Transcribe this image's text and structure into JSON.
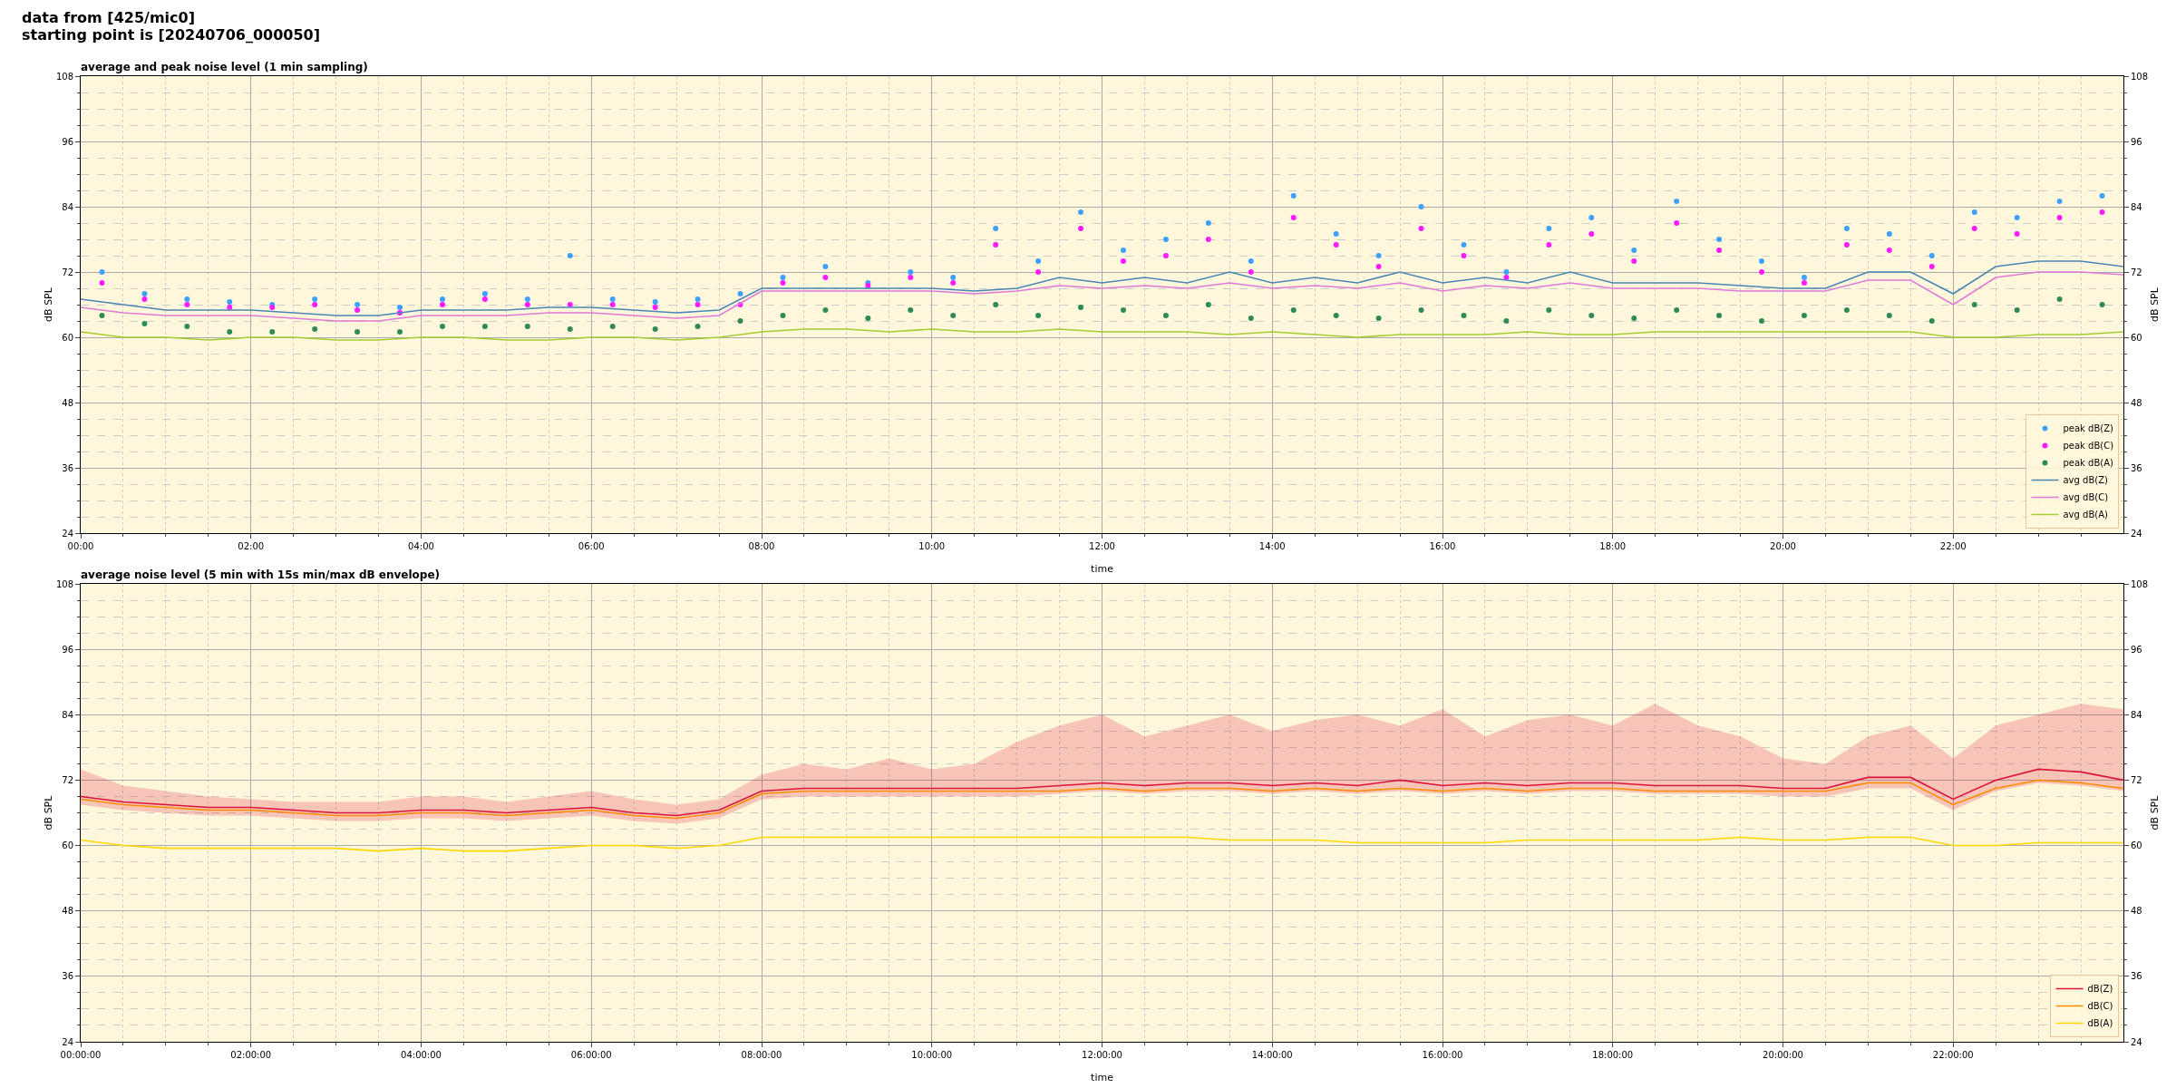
{
  "chart_data": [
    {
      "type": "line",
      "title": "data from [425/mic0]\nstarting point is [20240706_000050]",
      "subtitle": "average and peak noise level (1 min sampling)",
      "xlabel": "time",
      "ylabel": "dB SPL",
      "y2label": "dB SPL",
      "x": [
        0,
        0.5,
        1,
        1.5,
        2,
        2.5,
        3,
        3.5,
        4,
        4.5,
        5,
        5.5,
        6,
        6.5,
        7,
        7.5,
        8,
        8.5,
        9,
        9.5,
        10,
        10.5,
        11,
        11.5,
        12,
        12.5,
        13,
        13.5,
        14,
        14.5,
        15,
        15.5,
        16,
        16.5,
        17,
        17.5,
        18,
        18.5,
        19,
        19.5,
        20,
        20.5,
        21,
        21.5,
        22,
        22.5,
        23,
        23.5,
        24
      ],
      "xlim": [
        0,
        24
      ],
      "xticks": [
        {
          "value": 0,
          "label": "00:00"
        },
        {
          "value": 0.5,
          "label": null
        },
        {
          "value": 1,
          "label": null
        },
        {
          "value": 1.5,
          "label": null
        },
        {
          "value": 2,
          "label": "02:00"
        },
        {
          "value": 2.5,
          "label": null
        },
        {
          "value": 3,
          "label": null
        },
        {
          "value": 3.5,
          "label": null
        },
        {
          "value": 4,
          "label": "04:00"
        },
        {
          "value": 4.5,
          "label": null
        },
        {
          "value": 5,
          "label": null
        },
        {
          "value": 5.5,
          "label": null
        },
        {
          "value": 6,
          "label": "06:00"
        },
        {
          "value": 6.5,
          "label": null
        },
        {
          "value": 7,
          "label": null
        },
        {
          "value": 7.5,
          "label": null
        },
        {
          "value": 8,
          "label": "08:00"
        },
        {
          "value": 8.5,
          "label": null
        },
        {
          "value": 9,
          "label": null
        },
        {
          "value": 9.5,
          "label": null
        },
        {
          "value": 10,
          "label": "10:00"
        },
        {
          "value": 10.5,
          "label": null
        },
        {
          "value": 11,
          "label": null
        },
        {
          "value": 11.5,
          "label": null
        },
        {
          "value": 12,
          "label": "12:00"
        },
        {
          "value": 12.5,
          "label": null
        },
        {
          "value": 13,
          "label": null
        },
        {
          "value": 13.5,
          "label": null
        },
        {
          "value": 14,
          "label": "14:00"
        },
        {
          "value": 14.5,
          "label": null
        },
        {
          "value": 15,
          "label": null
        },
        {
          "value": 15.5,
          "label": null
        },
        {
          "value": 16,
          "label": "16:00"
        },
        {
          "value": 16.5,
          "label": null
        },
        {
          "value": 17,
          "label": null
        },
        {
          "value": 17.5,
          "label": null
        },
        {
          "value": 18,
          "label": "18:00"
        },
        {
          "value": 18.5,
          "label": null
        },
        {
          "value": 19,
          "label": null
        },
        {
          "value": 19.5,
          "label": null
        },
        {
          "value": 20,
          "label": "20:00"
        },
        {
          "value": 20.5,
          "label": null
        },
        {
          "value": 21,
          "label": null
        },
        {
          "value": 21.5,
          "label": null
        },
        {
          "value": 22,
          "label": "22:00"
        },
        {
          "value": 22.5,
          "label": null
        },
        {
          "value": 23,
          "label": null
        },
        {
          "value": 23.5,
          "label": null
        }
      ],
      "ylim": [
        24,
        108
      ],
      "yticks": [
        24,
        {
          "value": 27,
          "label": null
        },
        {
          "value": 30,
          "label": null
        },
        {
          "value": 33,
          "label": null
        },
        36,
        {
          "value": 39,
          "label": null
        },
        {
          "value": 42,
          "label": null
        },
        {
          "value": 45,
          "label": null
        },
        48,
        {
          "value": 51,
          "label": null
        },
        {
          "value": 54,
          "label": null
        },
        {
          "value": 57,
          "label": null
        },
        60,
        {
          "value": 63,
          "label": null
        },
        {
          "value": 66,
          "label": null
        },
        {
          "value": 69,
          "label": null
        },
        72,
        {
          "value": 75,
          "label": null
        },
        {
          "value": 78,
          "label": null
        },
        {
          "value": 81,
          "label": null
        },
        84,
        {
          "value": 87,
          "label": null
        },
        {
          "value": 90,
          "label": null
        },
        {
          "value": 93,
          "label": null
        },
        96,
        {
          "value": 99,
          "label": null
        },
        {
          "value": 102,
          "label": null
        },
        {
          "value": 105,
          "label": null
        },
        108
      ],
      "y2lim": [
        24,
        108
      ],
      "y2ticks": [
        24,
        36,
        48,
        60,
        72,
        84,
        96,
        108
      ],
      "grid": true,
      "legend": "bottom right",
      "series": [
        {
          "name": "peak dB(Z)",
          "type": "scatter",
          "marker": "circle",
          "color": "#3fa0ff",
          "x": [
            0.25,
            0.75,
            1.25,
            1.75,
            2.25,
            2.75,
            3.25,
            3.75,
            4.25,
            4.75,
            5.25,
            5.75,
            6.25,
            6.75,
            7.25,
            7.75,
            8.25,
            8.75,
            9.25,
            9.75,
            10.25,
            10.75,
            11.25,
            11.75,
            12.25,
            12.75,
            13.25,
            13.75,
            14.25,
            14.75,
            15.25,
            15.75,
            16.25,
            16.75,
            17.25,
            17.75,
            18.25,
            18.75,
            19.25,
            19.75,
            20.25,
            20.75,
            21.25,
            21.75,
            22.25,
            22.75,
            23.25,
            23.75
          ],
          "values": [
            72,
            68,
            67,
            66.5,
            66,
            67,
            66,
            65.5,
            67,
            68,
            67,
            75,
            67,
            66.5,
            67,
            68,
            71,
            73,
            70,
            72,
            71,
            80,
            74,
            83,
            76,
            78,
            81,
            74,
            86,
            79,
            75,
            84,
            77,
            72,
            80,
            82,
            76,
            85,
            78,
            74,
            71,
            80,
            79,
            75,
            83,
            82,
            85,
            86
          ]
        },
        {
          "name": "peak dB(C)",
          "type": "scatter",
          "marker": "circle",
          "color": "#ff1aff",
          "x": [
            0.25,
            0.75,
            1.25,
            1.75,
            2.25,
            2.75,
            3.25,
            3.75,
            4.25,
            4.75,
            5.25,
            5.75,
            6.25,
            6.75,
            7.25,
            7.75,
            8.25,
            8.75,
            9.25,
            9.75,
            10.25,
            10.75,
            11.25,
            11.75,
            12.25,
            12.75,
            13.25,
            13.75,
            14.25,
            14.75,
            15.25,
            15.75,
            16.25,
            16.75,
            17.25,
            17.75,
            18.25,
            18.75,
            19.25,
            19.75,
            20.25,
            20.75,
            21.25,
            21.75,
            22.25,
            22.75,
            23.25,
            23.75
          ],
          "values": [
            70,
            67,
            66,
            65.5,
            65.5,
            66,
            65,
            64.5,
            66,
            67,
            66,
            66,
            66,
            65.5,
            66,
            66,
            70,
            71,
            69.5,
            71,
            70,
            77,
            72,
            80,
            74,
            75,
            78,
            72,
            82,
            77,
            73,
            80,
            75,
            71,
            77,
            79,
            74,
            81,
            76,
            72,
            70,
            77,
            76,
            73,
            80,
            79,
            82,
            83
          ]
        },
        {
          "name": "peak dB(A)",
          "type": "scatter",
          "marker": "circle",
          "color": "#2e8b57",
          "x": [
            0.25,
            0.75,
            1.25,
            1.75,
            2.25,
            2.75,
            3.25,
            3.75,
            4.25,
            4.75,
            5.25,
            5.75,
            6.25,
            6.75,
            7.25,
            7.75,
            8.25,
            8.75,
            9.25,
            9.75,
            10.25,
            10.75,
            11.25,
            11.75,
            12.25,
            12.75,
            13.25,
            13.75,
            14.25,
            14.75,
            15.25,
            15.75,
            16.25,
            16.75,
            17.25,
            17.75,
            18.25,
            18.75,
            19.25,
            19.75,
            20.25,
            20.75,
            21.25,
            21.75,
            22.25,
            22.75,
            23.25,
            23.75
          ],
          "values": [
            64,
            62.5,
            62,
            61,
            61,
            61.5,
            61,
            61,
            62,
            62,
            62,
            61.5,
            62,
            61.5,
            62,
            63,
            64,
            65,
            63.5,
            65,
            64,
            66,
            64,
            65.5,
            65,
            64,
            66,
            63.5,
            65,
            64,
            63.5,
            65,
            64,
            63,
            65,
            64,
            63.5,
            65,
            64,
            63,
            64,
            65,
            64,
            63,
            66,
            65,
            67,
            66
          ]
        },
        {
          "name": "avg dB(Z)",
          "color": "#4a86b4",
          "values": [
            67,
            66,
            65,
            65,
            65,
            64.5,
            64,
            64,
            65,
            65,
            65,
            65.5,
            65.5,
            65,
            64.5,
            65,
            69,
            69,
            69,
            69,
            69,
            68.5,
            69,
            71,
            70,
            71,
            70,
            72,
            70,
            71,
            70,
            72,
            70,
            71,
            70,
            72,
            70,
            70,
            70,
            69.5,
            69,
            69,
            72,
            72,
            68,
            73,
            74,
            74,
            73
          ]
        },
        {
          "name": "avg dB(C)",
          "color": "#e07ad8",
          "values": [
            65.5,
            64.5,
            64,
            64,
            64,
            63.5,
            63,
            63,
            64,
            64,
            64,
            64.5,
            64.5,
            64,
            63.5,
            64,
            68.5,
            68.5,
            68.5,
            68.5,
            68.5,
            68,
            68.5,
            69.5,
            69,
            69.5,
            69,
            70,
            69,
            69.5,
            69,
            70,
            68.5,
            69.5,
            69,
            70,
            69,
            69,
            69,
            68.5,
            68.5,
            68.5,
            70.5,
            70.5,
            66,
            71,
            72,
            72,
            71.5
          ]
        },
        {
          "name": "avg dB(A)",
          "color": "#a4cc32",
          "values": [
            61,
            60,
            60,
            59.5,
            60,
            60,
            59.5,
            59.5,
            60,
            60,
            59.5,
            59.5,
            60,
            60,
            59.5,
            60,
            61,
            61.5,
            61.5,
            61,
            61.5,
            61,
            61,
            61.5,
            61,
            61,
            61,
            60.5,
            61,
            60.5,
            60,
            60.5,
            60.5,
            60.5,
            61,
            60.5,
            60.5,
            61,
            61,
            61,
            61,
            61,
            61,
            61,
            60,
            60,
            60.5,
            60.5,
            61
          ]
        }
      ]
    },
    {
      "type": "line",
      "title": "average noise level (5 min with 15s min/max dB envelope)",
      "xlabel": "time",
      "ylabel": "dB SPL",
      "y2label": "dB SPL",
      "x": [
        0,
        0.5,
        1,
        1.5,
        2,
        2.5,
        3,
        3.5,
        4,
        4.5,
        5,
        5.5,
        6,
        6.5,
        7,
        7.5,
        8,
        8.5,
        9,
        9.5,
        10,
        10.5,
        11,
        11.5,
        12,
        12.5,
        13,
        13.5,
        14,
        14.5,
        15,
        15.5,
        16,
        16.5,
        17,
        17.5,
        18,
        18.5,
        19,
        19.5,
        20,
        20.5,
        21,
        21.5,
        22,
        22.5,
        23,
        23.5,
        24
      ],
      "xlim": [
        0,
        24
      ],
      "xticks": [
        {
          "value": 0,
          "label": "00:00:00"
        },
        {
          "value": 0.5,
          "label": null
        },
        {
          "value": 1,
          "label": null
        },
        {
          "value": 1.5,
          "label": null
        },
        {
          "value": 2,
          "label": "02:00:00"
        },
        {
          "value": 2.5,
          "label": null
        },
        {
          "value": 3,
          "label": null
        },
        {
          "value": 3.5,
          "label": null
        },
        {
          "value": 4,
          "label": "04:00:00"
        },
        {
          "value": 4.5,
          "label": null
        },
        {
          "value": 5,
          "label": null
        },
        {
          "value": 5.5,
          "label": null
        },
        {
          "value": 6,
          "label": "06:00:00"
        },
        {
          "value": 6.5,
          "label": null
        },
        {
          "value": 7,
          "label": null
        },
        {
          "value": 7.5,
          "label": null
        },
        {
          "value": 8,
          "label": "08:00:00"
        },
        {
          "value": 8.5,
          "label": null
        },
        {
          "value": 9,
          "label": null
        },
        {
          "value": 9.5,
          "label": null
        },
        {
          "value": 10,
          "label": "10:00:00"
        },
        {
          "value": 10.5,
          "label": null
        },
        {
          "value": 11,
          "label": null
        },
        {
          "value": 11.5,
          "label": null
        },
        {
          "value": 12,
          "label": "12:00:00"
        },
        {
          "value": 12.5,
          "label": null
        },
        {
          "value": 13,
          "label": null
        },
        {
          "value": 13.5,
          "label": null
        },
        {
          "value": 14,
          "label": "14:00:00"
        },
        {
          "value": 14.5,
          "label": null
        },
        {
          "value": 15,
          "label": null
        },
        {
          "value": 15.5,
          "label": null
        },
        {
          "value": 16,
          "label": "16:00:00"
        },
        {
          "value": 16.5,
          "label": null
        },
        {
          "value": 17,
          "label": null
        },
        {
          "value": 17.5,
          "label": null
        },
        {
          "value": 18,
          "label": "18:00:00"
        },
        {
          "value": 18.5,
          "label": null
        },
        {
          "value": 19,
          "label": null
        },
        {
          "value": 19.5,
          "label": null
        },
        {
          "value": 20,
          "label": "20:00:00"
        },
        {
          "value": 20.5,
          "label": null
        },
        {
          "value": 21,
          "label": null
        },
        {
          "value": 21.5,
          "label": null
        },
        {
          "value": 22,
          "label": "22:00:00"
        },
        {
          "value": 22.5,
          "label": null
        },
        {
          "value": 23,
          "label": null
        },
        {
          "value": 23.5,
          "label": null
        }
      ],
      "ylim": [
        24,
        108
      ],
      "yticks": [
        24,
        {
          "value": 27,
          "label": null
        },
        {
          "value": 30,
          "label": null
        },
        {
          "value": 33,
          "label": null
        },
        36,
        {
          "value": 39,
          "label": null
        },
        {
          "value": 42,
          "label": null
        },
        {
          "value": 45,
          "label": null
        },
        48,
        {
          "value": 51,
          "label": null
        },
        {
          "value": 54,
          "label": null
        },
        {
          "value": 57,
          "label": null
        },
        60,
        {
          "value": 63,
          "label": null
        },
        {
          "value": 66,
          "label": null
        },
        {
          "value": 69,
          "label": null
        },
        72,
        {
          "value": 75,
          "label": null
        },
        {
          "value": 78,
          "label": null
        },
        {
          "value": 81,
          "label": null
        },
        84,
        {
          "value": 87,
          "label": null
        },
        {
          "value": 90,
          "label": null
        },
        {
          "value": 93,
          "label": null
        },
        96,
        {
          "value": 99,
          "label": null
        },
        {
          "value": 102,
          "label": null
        },
        {
          "value": 105,
          "label": null
        },
        108
      ],
      "y2lim": [
        24,
        108
      ],
      "y2ticks": [
        24,
        36,
        48,
        60,
        72,
        84,
        96,
        108
      ],
      "grid": true,
      "legend": "bottom right",
      "series": [
        {
          "name": "dB(Z)",
          "color": "#dc143c",
          "values": [
            69,
            68,
            67.5,
            67,
            67,
            66.5,
            66,
            66,
            66.5,
            66.5,
            66,
            66.5,
            67,
            66,
            65.5,
            66.5,
            70,
            70.5,
            70.5,
            70.5,
            70.5,
            70.5,
            70.5,
            71,
            71.5,
            71,
            71.5,
            71.5,
            71,
            71.5,
            71,
            72,
            71,
            71.5,
            71,
            71.5,
            71.5,
            71,
            71,
            71,
            70.5,
            70.5,
            72.5,
            72.5,
            68.5,
            72,
            74,
            73.5,
            72
          ],
          "lower": [
            67.5,
            66.5,
            66,
            65.5,
            65.5,
            65,
            64.5,
            64.5,
            65,
            65,
            64.5,
            65,
            65.5,
            64.5,
            64,
            65,
            68.5,
            69,
            69,
            69,
            69,
            69,
            69,
            69.5,
            70,
            69.5,
            70,
            70,
            69.5,
            70,
            69.5,
            70,
            69.5,
            70,
            69.5,
            70,
            70,
            69.5,
            69.5,
            69.5,
            69,
            69,
            70.5,
            70.5,
            66.5,
            70,
            71.5,
            71,
            70
          ],
          "upper": [
            74,
            71,
            70,
            69,
            68.5,
            68,
            68,
            68,
            69,
            69,
            68,
            69,
            70,
            68.5,
            67.5,
            68.5,
            73,
            75,
            74,
            76,
            74,
            75,
            79,
            82,
            84,
            80,
            82,
            84,
            81,
            83,
            84,
            82,
            85,
            80,
            83,
            84,
            82,
            86,
            82,
            80,
            76,
            75,
            80,
            82,
            76,
            82,
            84,
            86,
            85
          ]
        },
        {
          "name": "dB(C)",
          "color": "#ff8c00",
          "values": [
            68.5,
            67.5,
            67,
            66.5,
            66.5,
            66,
            65.5,
            65.5,
            66,
            66,
            65.5,
            66,
            66.5,
            65.5,
            65,
            66,
            69.5,
            70,
            70,
            70,
            70,
            70,
            70,
            70,
            70.5,
            70,
            70.5,
            70.5,
            70,
            70.5,
            70,
            70.5,
            70,
            70.5,
            70,
            70.5,
            70.5,
            70,
            70,
            70,
            70,
            70,
            71.5,
            71.5,
            67.5,
            70.5,
            72,
            71.5,
            70.5
          ]
        },
        {
          "name": "dB(A)",
          "color": "#ffd700",
          "values": [
            61,
            60,
            59.5,
            59.5,
            59.5,
            59.5,
            59.5,
            59,
            59.5,
            59,
            59,
            59.5,
            60,
            60,
            59.5,
            60,
            61.5,
            61.5,
            61.5,
            61.5,
            61.5,
            61.5,
            61.5,
            61.5,
            61.5,
            61.5,
            61.5,
            61,
            61,
            61,
            60.5,
            60.5,
            60.5,
            60.5,
            61,
            61,
            61,
            61,
            61,
            61.5,
            61,
            61,
            61.5,
            61.5,
            60,
            60,
            60.5,
            60.5,
            60.5
          ]
        }
      ]
    }
  ]
}
